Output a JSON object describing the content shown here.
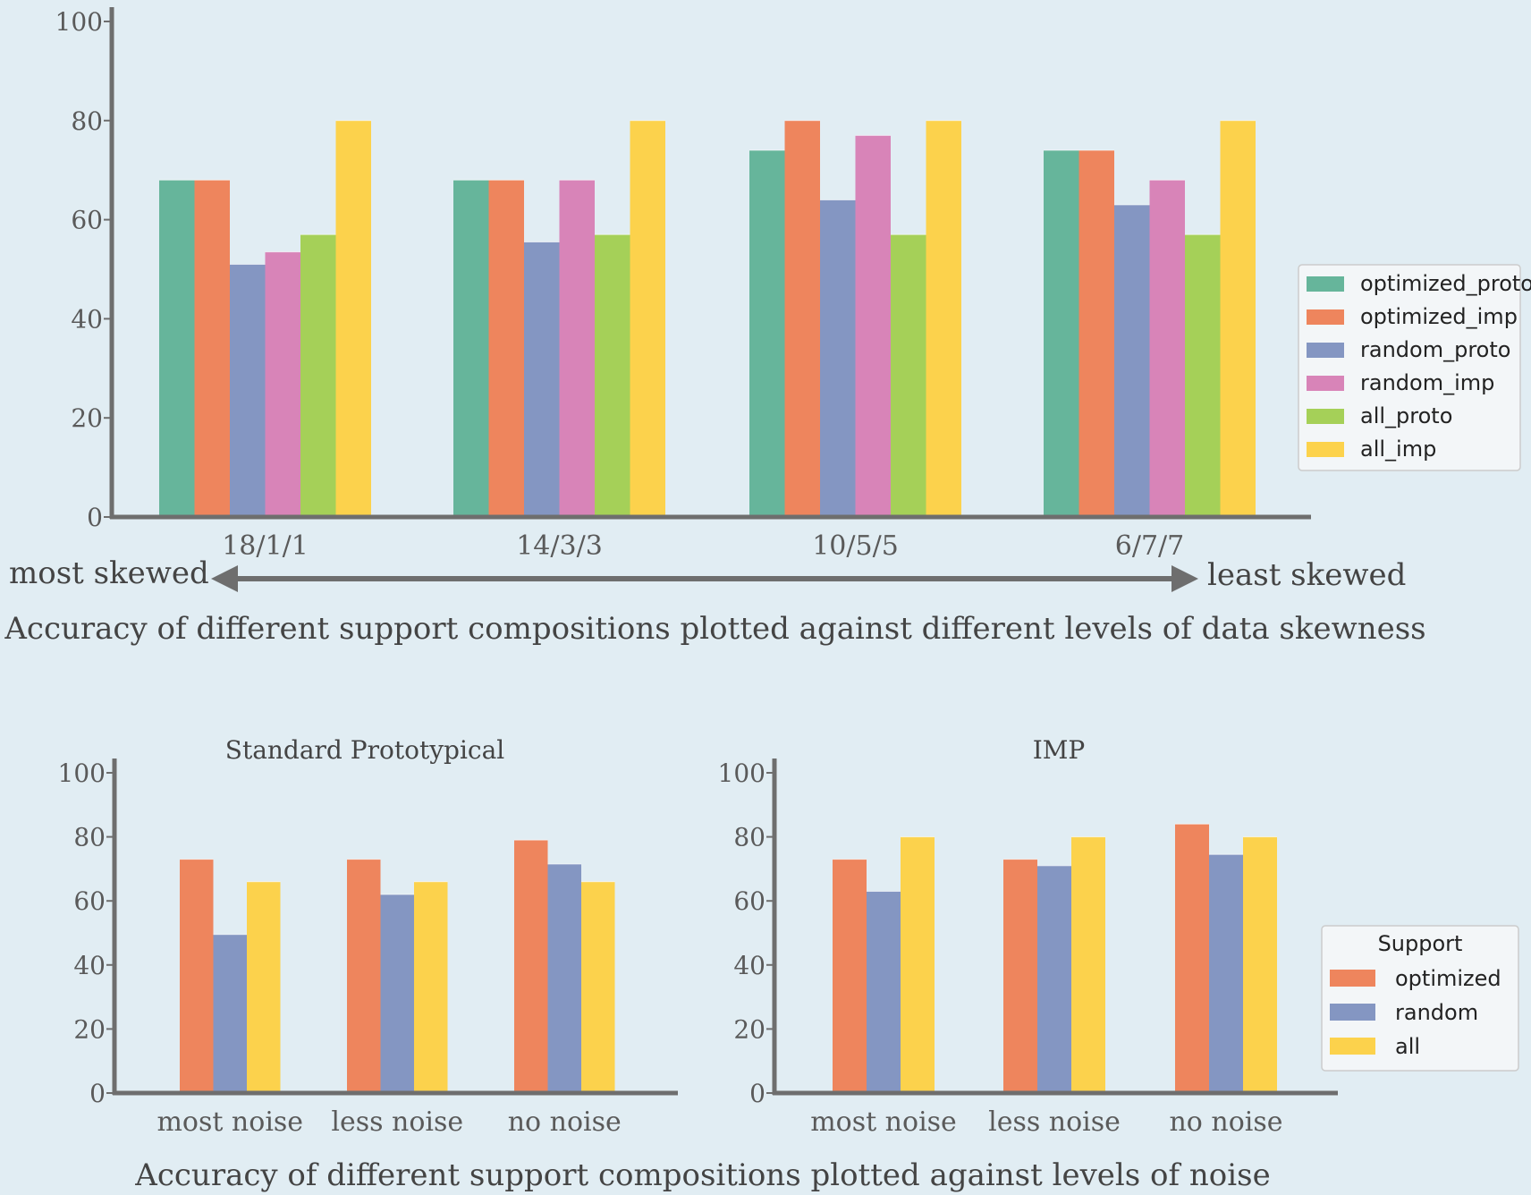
{
  "colors": {
    "background": "#e1edf3",
    "axis": "#6e6e6e",
    "optimized_proto": "#66b59b",
    "optimized_imp": "#ee855d",
    "random_proto": "#8496c2",
    "random_imp": "#d884b8",
    "all_proto": "#a5d058",
    "all_imp": "#fcd24c"
  },
  "skew_labels": {
    "left": "most skewed",
    "right": "least skewed"
  },
  "captions": {
    "top": "Accuracy of different support compositions plotted against different levels of data skewness",
    "bottom": "Accuracy of different support compositions plotted against levels of noise"
  },
  "chart_data": [
    {
      "type": "bar",
      "title": "",
      "xlabel": "",
      "ylabel": "",
      "ylim": [
        0,
        100
      ],
      "yticks": [
        0,
        20,
        40,
        60,
        80,
        100
      ],
      "categories": [
        "18/1/1",
        "14/3/3",
        "10/5/5",
        "6/7/7"
      ],
      "legend_position": "right",
      "series": [
        {
          "name": "optimized_proto",
          "color": "#66b59b",
          "values": [
            68,
            68,
            74,
            74
          ]
        },
        {
          "name": "optimized_imp",
          "color": "#ee855d",
          "values": [
            68,
            68,
            80,
            74
          ]
        },
        {
          "name": "random_proto",
          "color": "#8496c2",
          "values": [
            51,
            55.5,
            64,
            63
          ]
        },
        {
          "name": "random_imp",
          "color": "#d884b8",
          "values": [
            53.5,
            68,
            77,
            68
          ]
        },
        {
          "name": "all_proto",
          "color": "#a5d058",
          "values": [
            57,
            57,
            57,
            57
          ]
        },
        {
          "name": "all_imp",
          "color": "#fcd24c",
          "values": [
            80,
            80,
            80,
            80
          ]
        }
      ]
    },
    {
      "type": "bar",
      "title": "Standard Prototypical",
      "xlabel": "",
      "ylabel": "",
      "ylim": [
        0,
        100
      ],
      "yticks": [
        0,
        20,
        40,
        60,
        80,
        100
      ],
      "categories": [
        "most noise",
        "less noise",
        "no noise"
      ],
      "series": [
        {
          "name": "optimized",
          "color": "#ee855d",
          "values": [
            73,
            73,
            79
          ]
        },
        {
          "name": "random",
          "color": "#8496c2",
          "values": [
            49.5,
            62,
            71.5
          ]
        },
        {
          "name": "all",
          "color": "#fcd24c",
          "values": [
            66,
            66,
            66
          ]
        }
      ]
    },
    {
      "type": "bar",
      "title": "IMP",
      "xlabel": "",
      "ylabel": "",
      "ylim": [
        0,
        100
      ],
      "yticks": [
        0,
        20,
        40,
        60,
        80,
        100
      ],
      "categories": [
        "most noise",
        "less noise",
        "no noise"
      ],
      "legend_title": "Support",
      "legend_position": "right",
      "series": [
        {
          "name": "optimized",
          "color": "#ee855d",
          "values": [
            73,
            73,
            84
          ]
        },
        {
          "name": "random",
          "color": "#8496c2",
          "values": [
            63,
            71,
            74.5
          ]
        },
        {
          "name": "all",
          "color": "#fcd24c",
          "values": [
            80,
            80,
            80
          ]
        }
      ]
    }
  ]
}
